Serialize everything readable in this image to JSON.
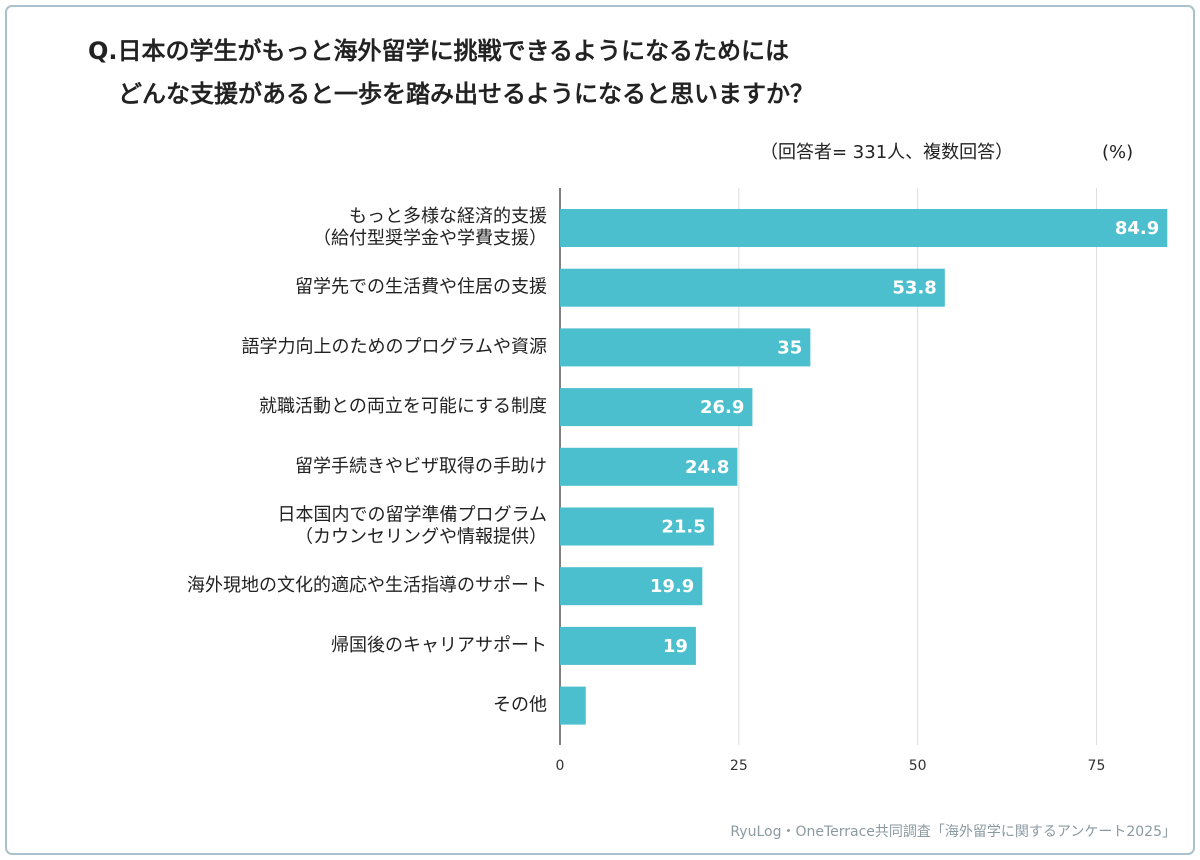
{
  "chart_data": {
    "type": "barh",
    "title": [
      "Q.日本の学生がもっと海外留学に挑戦できるようになるためには",
      "どんな支援があると一歩を踏み出せるようになると思いますか？"
    ],
    "note": "（回答者= 331人、複数回答）",
    "unit": "(%)",
    "source": "RyuLog・OneTerrace共同調査「海外留学に関するアンケート2025」",
    "categories": [
      "もっと多様な経済的支援\n（給付型奨学金や学費支援）",
      "留学先での生活費や住居の支援",
      "語学力向上のためのプログラムや資源",
      "就職活動との両立を可能にする制度",
      "留学手続きやビザ取得の手助け",
      "日本国内での留学準備プログラム\n（カウンセリングや情報提供）",
      "海外現地の文化的適応や生活指導のサポート",
      "帰国後のキャリアサポート",
      "その他"
    ],
    "values": [
      84.9,
      53.8,
      35,
      26.9,
      24.8,
      21.5,
      19.9,
      19,
      3.6
    ],
    "show_value_labels": [
      true,
      true,
      true,
      true,
      true,
      true,
      true,
      true,
      false
    ],
    "color": "#4bbfcd",
    "xlim": [
      0,
      85
    ],
    "xticks": [
      0,
      25,
      50,
      75
    ],
    "grid": true
  }
}
